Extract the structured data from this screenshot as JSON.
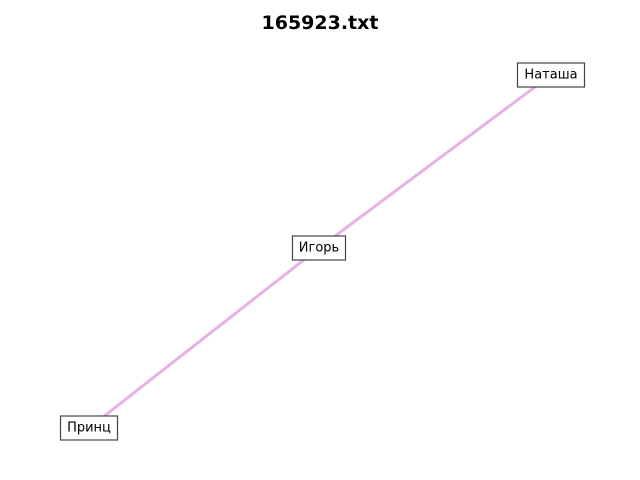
{
  "title": "165923.txt",
  "edge_color": "#e8b0e8",
  "nodes": [
    {
      "id": "natasha",
      "label": "Наташа"
    },
    {
      "id": "igor",
      "label": "Игорь"
    },
    {
      "id": "prince",
      "label": "Принц"
    }
  ],
  "edges": [
    {
      "source": "prince",
      "target": "igor"
    },
    {
      "source": "igor",
      "target": "natasha"
    }
  ]
}
